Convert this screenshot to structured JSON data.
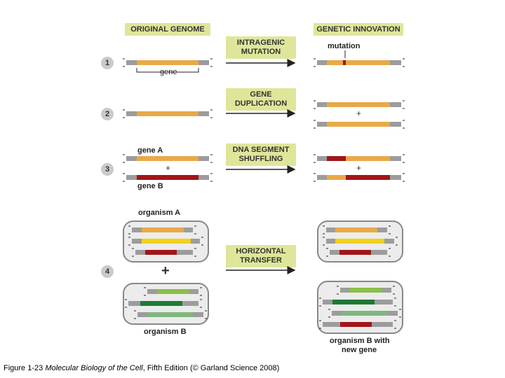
{
  "headers": {
    "original_genome": "ORIGINAL GENOME",
    "genetic_innovation": "GENETIC INNOVATION",
    "intragenic_mutation": "INTRAGENIC MUTATION",
    "gene_duplication": "GENE DUPLICATION",
    "dna_segment_shuffling": "DNA SEGMENT SHUFFLING",
    "horizontal_transfer": "HORIZONTAL TRANSFER"
  },
  "steps": [
    "1",
    "2",
    "3",
    "4"
  ],
  "labels": {
    "gene": "gene",
    "mutation": "mutation",
    "gene_a": "gene A",
    "gene_b": "gene B",
    "organism_a": "organism A",
    "organism_b": "organism B",
    "organism_b_new_line1": "organism B with",
    "organism_b_new_line2": "new gene",
    "plus": "+"
  },
  "caption": {
    "prefix": "Figure 1-23 ",
    "title": "Molecular Biology of the Cell",
    "suffix": ", Fifth Edition (© Garland Science 2008)"
  },
  "colors": {
    "header_bg": "#dfe69a",
    "orange_gene": "#e8a948",
    "red_gene": "#a31518",
    "yellow_gene": "#f2d01c",
    "light_green_gene": "#8bbf4a",
    "dark_green_gene": "#1e7a35",
    "pale_green_gene": "#7fb77f",
    "flank_gray": "#9c9c9c",
    "step_circle": "#c8cbc9",
    "box_border": "#888888"
  }
}
